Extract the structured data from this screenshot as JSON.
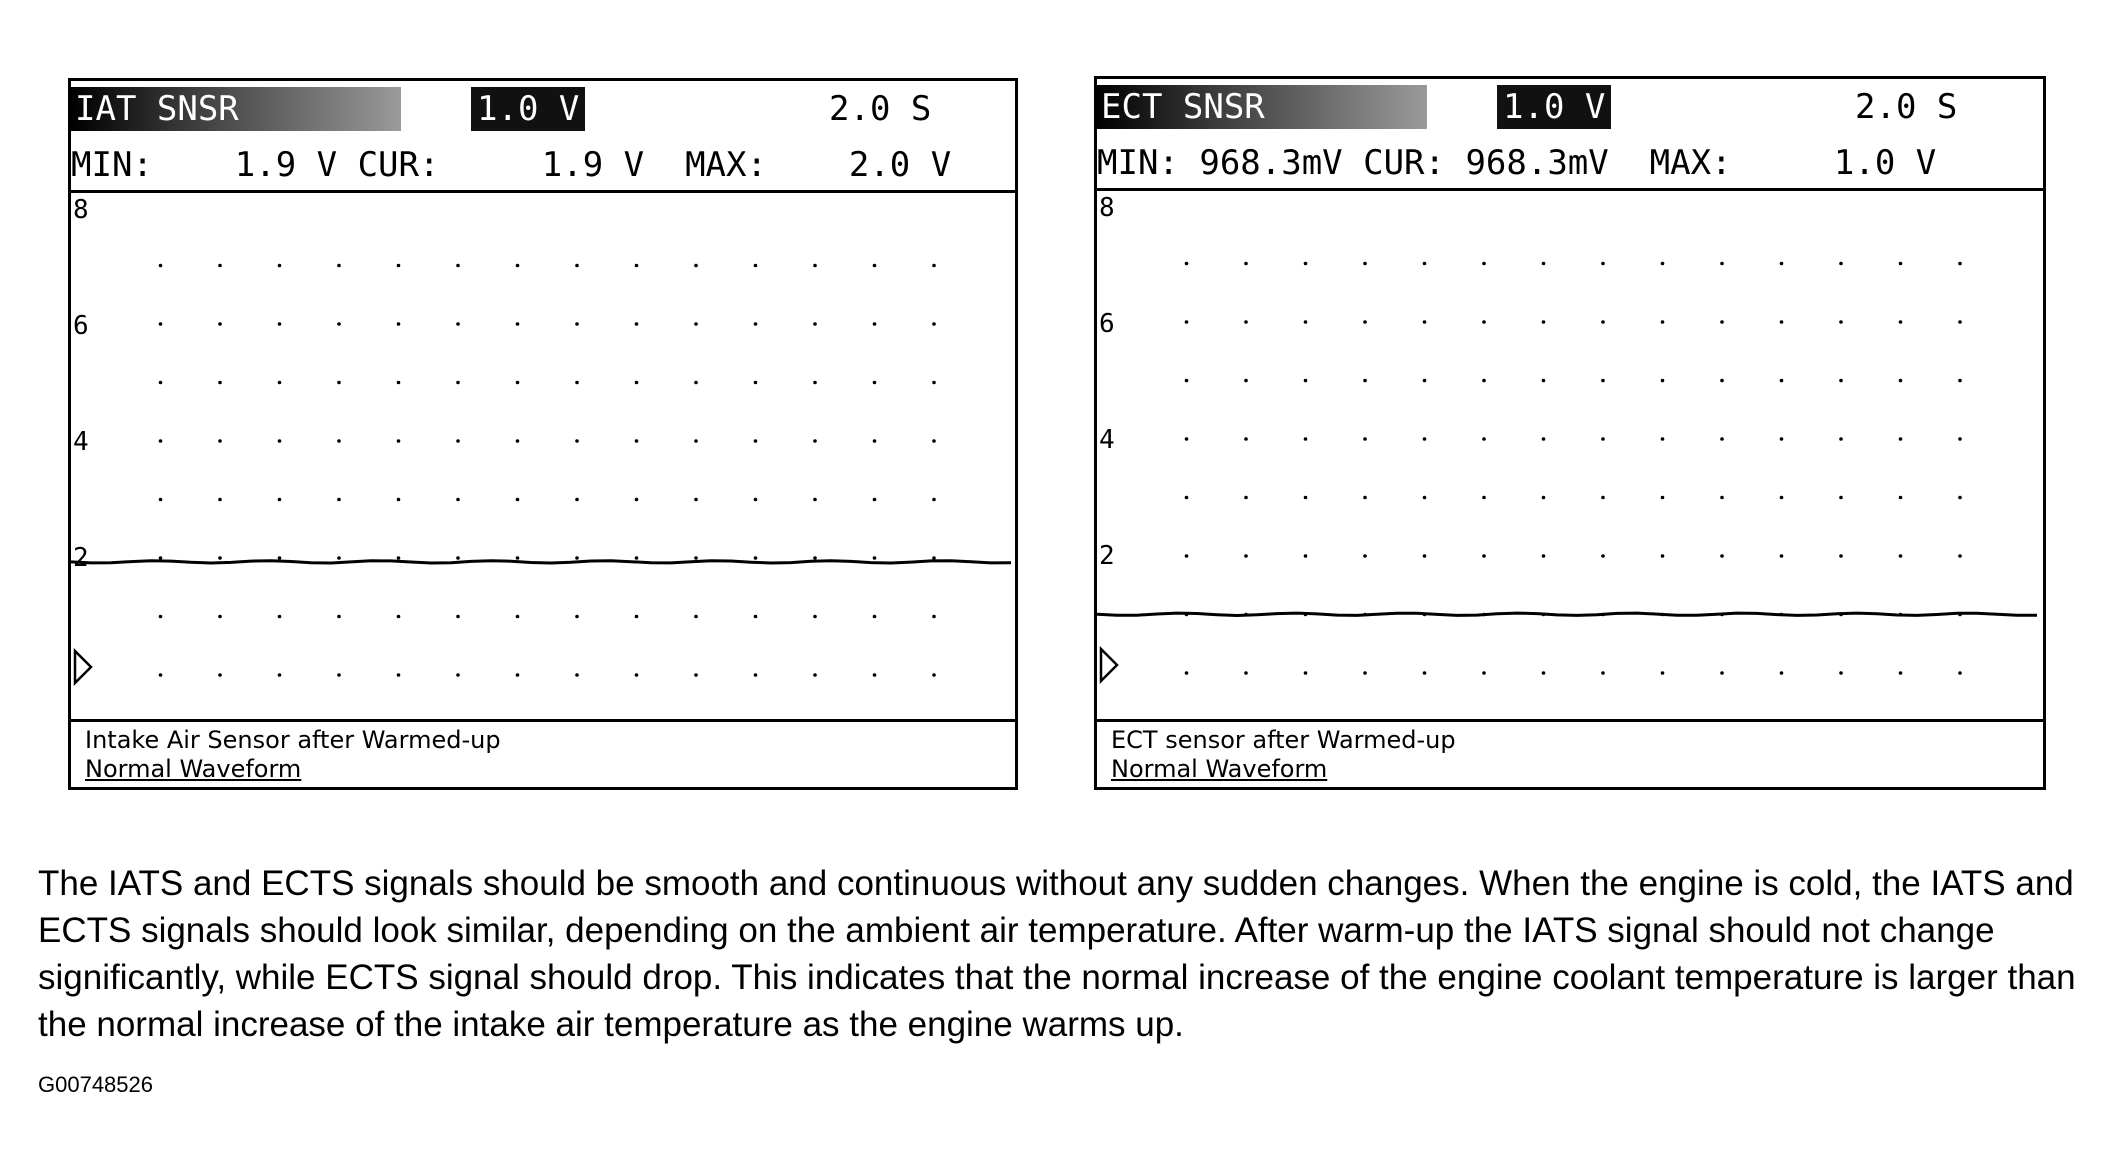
{
  "panels": [
    {
      "id": "iat",
      "channel_name": "IAT SNSR",
      "volts_per_div": "1.0 V",
      "time_base": "2.0 S",
      "readings_line": "MIN:    1.9 V CUR:     1.9 V  MAX:    2.0 V",
      "y_labels": [
        "8",
        "6",
        "4",
        "2"
      ],
      "caption_line1": "Intake Air Sensor after Warmed-up",
      "caption_line2": "Normal Waveform",
      "signal_level_v": 1.9
    },
    {
      "id": "ect",
      "channel_name": "ECT SNSR",
      "volts_per_div": "1.0 V",
      "time_base": "2.0 S",
      "readings_line": "MIN: 968.3mV CUR: 968.3mV  MAX:     1.0 V",
      "y_labels": [
        "8",
        "6",
        "4",
        "2"
      ],
      "caption_line1": "ECT sensor after Warmed-up",
      "caption_line2": "Normal Waveform",
      "signal_level_v": 0.97
    }
  ],
  "description": "The IATS and ECTS signals should be smooth and continuous without any sudden changes. When the engine is cold, the IATS and ECTS signals should look similar, depending on the ambient air temperature. After warm-up the IATS signal should not change significantly, while ECTS signal should drop. This indicates that the normal increase of the engine coolant temperature is larger than the normal increase of the intake air temperature as the engine warms up.",
  "figure_id": "G00748526"
}
